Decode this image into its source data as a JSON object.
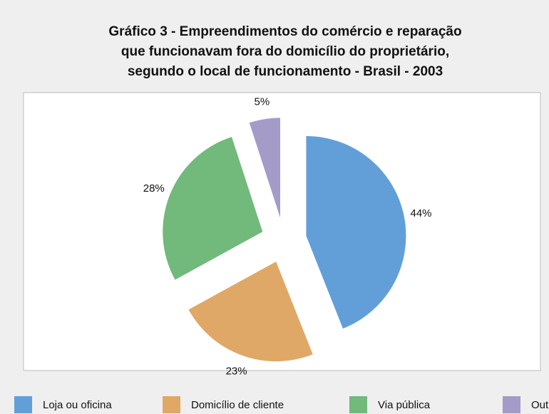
{
  "chart_data": {
    "type": "pie",
    "title": [
      "Gráfico 3 - Empreendimentos do comércio e reparação",
      "que funcionavam fora do domicílio do proprietário,",
      "segundo o local de funcionamento - Brasil - 2003"
    ],
    "categories": [
      "Loja ou oficina",
      "Domicílio de cliente",
      "Via pública",
      "Outros"
    ],
    "values": [
      44,
      23,
      28,
      5
    ],
    "value_labels": [
      "44%",
      "23%",
      "28%",
      "5%"
    ],
    "colors": [
      "#629fd8",
      "#e0a866",
      "#72b97c",
      "#a49bc8"
    ],
    "legend": "bottom"
  }
}
